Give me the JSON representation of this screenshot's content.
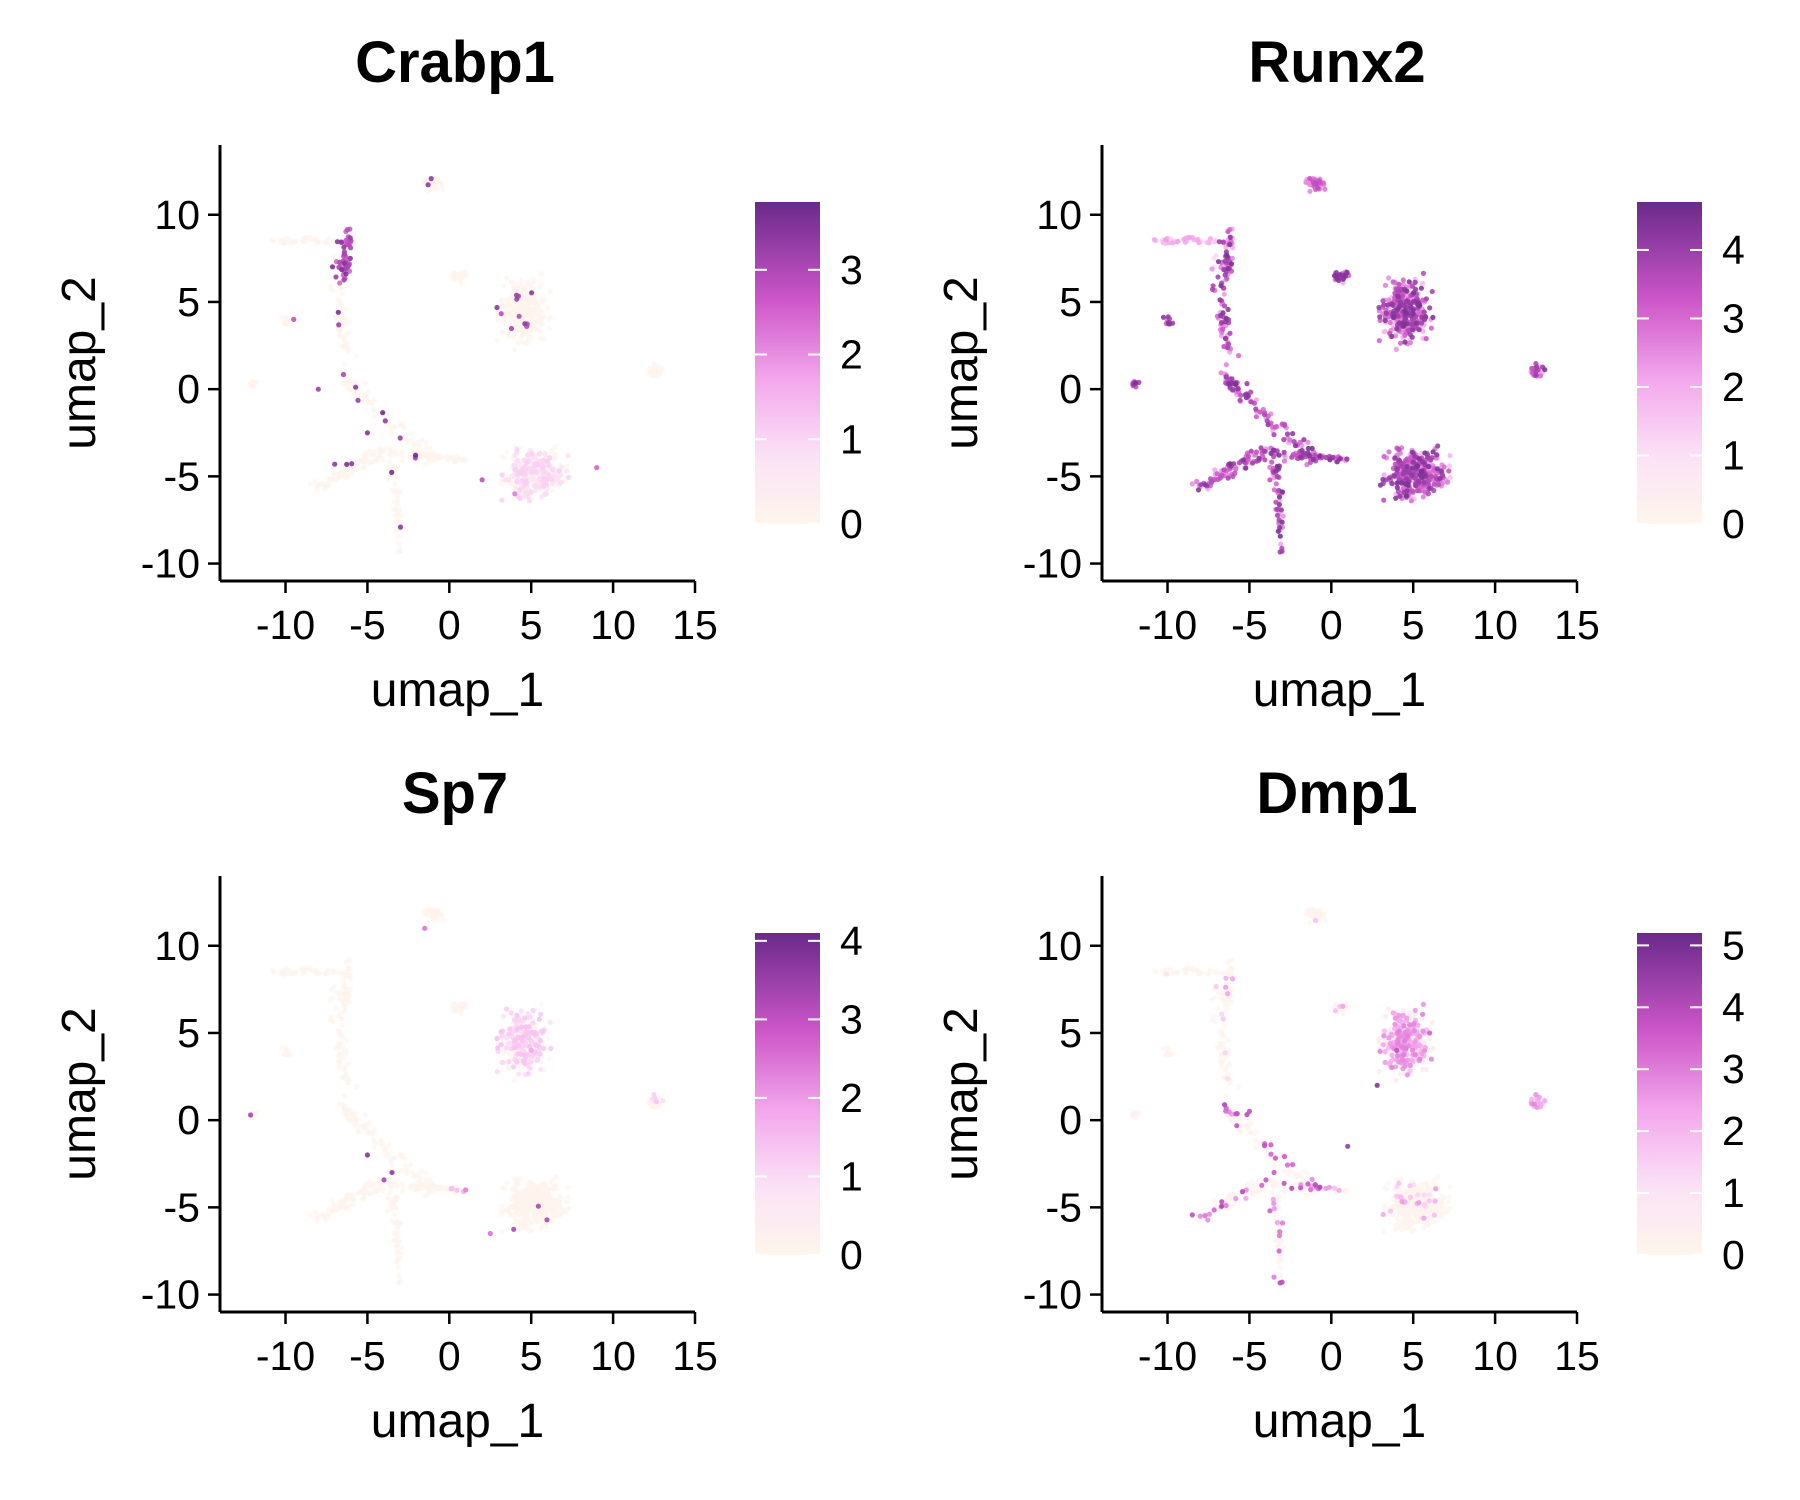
{
  "chart_data": [
    {
      "type": "scatter",
      "title": "Crabp1",
      "xlabel": "umap_1",
      "ylabel": "umap_2",
      "xlim": [
        -14,
        15
      ],
      "ylim": [
        -11,
        14
      ],
      "xticks": [
        -10,
        -5,
        0,
        5,
        10,
        15
      ],
      "yticks": [
        -10,
        -5,
        0,
        5,
        10
      ],
      "xtick_labels": [
        "-10",
        "-5",
        "0",
        "5",
        "10",
        "15"
      ],
      "ytick_labels": [
        "-10",
        "-5",
        "0",
        "5",
        "10"
      ],
      "grid": false,
      "legend_placement": "right",
      "colorbar": {
        "min": 0,
        "max": 3.8,
        "ticks": [
          0,
          1,
          2,
          3
        ],
        "tick_labels": [
          "0",
          "1",
          "2",
          "3"
        ]
      },
      "highlights": [
        {
          "x": -6.0,
          "y": 8.5,
          "value": 3.0
        },
        {
          "x": -6.2,
          "y": 7.0,
          "value": 2.5
        },
        {
          "x": -9.5,
          "y": 4.0,
          "value": 2.8
        },
        {
          "x": -8.0,
          "y": 0.0,
          "value": 3.2
        },
        {
          "x": -5.0,
          "y": -2.5,
          "value": 3.5
        },
        {
          "x": -3.0,
          "y": -2.8,
          "value": 3.2
        },
        {
          "x": -7.0,
          "y": -4.3,
          "value": 3.4
        },
        {
          "x": 2.0,
          "y": -5.2,
          "value": 2.8
        },
        {
          "x": 9.0,
          "y": -4.5,
          "value": 2.5
        },
        {
          "x": 4.0,
          "y": -6.0,
          "value": 2.2
        }
      ]
    },
    {
      "type": "scatter",
      "title": "Runx2",
      "xlabel": "umap_1",
      "ylabel": "umap_2",
      "xlim": [
        -14,
        15
      ],
      "ylim": [
        -11,
        14
      ],
      "xticks": [
        -10,
        -5,
        0,
        5,
        10,
        15
      ],
      "yticks": [
        -10,
        -5,
        0,
        5,
        10
      ],
      "xtick_labels": [
        "-10",
        "-5",
        "0",
        "5",
        "10",
        "15"
      ],
      "ytick_labels": [
        "-10",
        "-5",
        "0",
        "5",
        "10"
      ],
      "grid": false,
      "legend_placement": "right",
      "colorbar": {
        "min": 0,
        "max": 4.7,
        "ticks": [
          0,
          1,
          2,
          3,
          4
        ],
        "tick_labels": [
          "0",
          "1",
          "2",
          "3",
          "4"
        ]
      },
      "highlights": [
        {
          "x": -3.5,
          "y": -3.5,
          "value": 4.3
        },
        {
          "x": 3.0,
          "y": -5.5,
          "value": 4.2
        },
        {
          "x": 5.0,
          "y": 4.0,
          "value": 3.8
        },
        {
          "x": -6.0,
          "y": -5.0,
          "value": 3.5
        },
        {
          "x": -1.0,
          "y": 12.0,
          "value": 3.0
        }
      ]
    },
    {
      "type": "scatter",
      "title": "Sp7",
      "xlabel": "umap_1",
      "ylabel": "umap_2",
      "xlim": [
        -14,
        15
      ],
      "ylim": [
        -11,
        14
      ],
      "xticks": [
        -10,
        -5,
        0,
        5,
        10,
        15
      ],
      "yticks": [
        -10,
        -5,
        0,
        5,
        10
      ],
      "xtick_labels": [
        "-10",
        "-5",
        "0",
        "5",
        "10",
        "15"
      ],
      "ytick_labels": [
        "-10",
        "-5",
        "0",
        "5",
        "10"
      ],
      "grid": false,
      "legend_placement": "right",
      "colorbar": {
        "min": 0,
        "max": 4.1,
        "ticks": [
          0,
          1,
          2,
          3,
          4
        ],
        "tick_labels": [
          "0",
          "1",
          "2",
          "3",
          "4"
        ]
      },
      "highlights": [
        {
          "x": -5.0,
          "y": -2.0,
          "value": 3.8
        },
        {
          "x": -3.5,
          "y": -3.0,
          "value": 3.6
        },
        {
          "x": -1.5,
          "y": 11.0,
          "value": 2.5
        },
        {
          "x": 1.0,
          "y": -4.0,
          "value": 2.3
        },
        {
          "x": 2.5,
          "y": -6.5,
          "value": 2.5
        },
        {
          "x": 5.0,
          "y": 4.0,
          "value": 1.8
        }
      ]
    },
    {
      "type": "scatter",
      "title": "Dmp1",
      "xlabel": "umap_1",
      "ylabel": "umap_2",
      "xlim": [
        -14,
        15
      ],
      "ylim": [
        -11,
        14
      ],
      "xticks": [
        -10,
        -5,
        0,
        5,
        10,
        15
      ],
      "yticks": [
        -10,
        -5,
        0,
        5,
        10
      ],
      "xtick_labels": [
        "-10",
        "-5",
        "0",
        "5",
        "10",
        "15"
      ],
      "ytick_labels": [
        "-10",
        "-5",
        "0",
        "5",
        "10"
      ],
      "grid": false,
      "legend_placement": "right",
      "colorbar": {
        "min": 0,
        "max": 5.2,
        "ticks": [
          0,
          1,
          2,
          3,
          4,
          5
        ],
        "tick_labels": [
          "0",
          "1",
          "2",
          "3",
          "4",
          "5"
        ]
      },
      "highlights": [
        {
          "x": 2.8,
          "y": 2.0,
          "value": 4.8
        },
        {
          "x": 4.0,
          "y": 4.0,
          "value": 3.8
        },
        {
          "x": 6.0,
          "y": 5.0,
          "value": 3.5
        },
        {
          "x": 1.0,
          "y": -1.5,
          "value": 4.5
        },
        {
          "x": -5.0,
          "y": 0.5,
          "value": 3.8
        },
        {
          "x": -3.5,
          "y": -3.0,
          "value": 3.6
        },
        {
          "x": -3.5,
          "y": -9.0,
          "value": 3.0
        },
        {
          "x": -8.0,
          "y": -5.5,
          "value": 2.8
        }
      ]
    }
  ],
  "colors": {
    "low": "#fdf6ec",
    "mid_low": "#fbe1f6",
    "mid": "#f3a6ec",
    "mid_high": "#cc55c8",
    "high": "#6a2a8a"
  }
}
